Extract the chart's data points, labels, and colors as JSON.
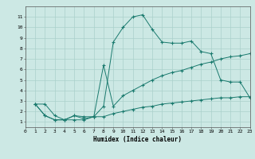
{
  "xlabel": "Humidex (Indice chaleur)",
  "bg_color": "#cce8e4",
  "grid_color": "#aad0cb",
  "line_color": "#1a7a6e",
  "xlim": [
    0,
    23
  ],
  "ylim": [
    0.5,
    12
  ],
  "xticks": [
    0,
    1,
    2,
    3,
    4,
    5,
    6,
    7,
    8,
    9,
    10,
    11,
    12,
    13,
    14,
    15,
    16,
    17,
    18,
    19,
    20,
    21,
    22,
    23
  ],
  "yticks": [
    1,
    2,
    3,
    4,
    5,
    6,
    7,
    8,
    9,
    10,
    11
  ],
  "line1_x": [
    1,
    2,
    3,
    4,
    5,
    6,
    7,
    8,
    9,
    10,
    11,
    12,
    13,
    14,
    15,
    16,
    17,
    18,
    19,
    20,
    21,
    22,
    23
  ],
  "line1_y": [
    2.7,
    2.7,
    1.6,
    1.2,
    1.2,
    1.2,
    1.5,
    2.5,
    8.6,
    10.0,
    11.0,
    11.2,
    9.8,
    8.6,
    8.5,
    8.5,
    8.7,
    7.7,
    7.5,
    5.0,
    4.8,
    4.8,
    3.3
  ],
  "line2_x": [
    1,
    2,
    3,
    4,
    5,
    6,
    7,
    8,
    9,
    10,
    11,
    12,
    13,
    14,
    15,
    16,
    17,
    18,
    19,
    20,
    21,
    22,
    23
  ],
  "line2_y": [
    2.7,
    1.6,
    1.2,
    1.2,
    1.6,
    1.3,
    1.5,
    6.4,
    2.5,
    3.5,
    4.0,
    4.5,
    5.0,
    5.4,
    5.7,
    5.9,
    6.2,
    6.5,
    6.7,
    7.0,
    7.2,
    7.3,
    7.5
  ],
  "line3_x": [
    1,
    2,
    3,
    4,
    5,
    6,
    7,
    8,
    9,
    10,
    11,
    12,
    13,
    14,
    15,
    16,
    17,
    18,
    19,
    20,
    21,
    22,
    23
  ],
  "line3_y": [
    2.7,
    1.6,
    1.2,
    1.2,
    1.6,
    1.5,
    1.5,
    1.5,
    1.8,
    2.0,
    2.2,
    2.4,
    2.5,
    2.7,
    2.8,
    2.9,
    3.0,
    3.1,
    3.2,
    3.3,
    3.3,
    3.4,
    3.4
  ]
}
